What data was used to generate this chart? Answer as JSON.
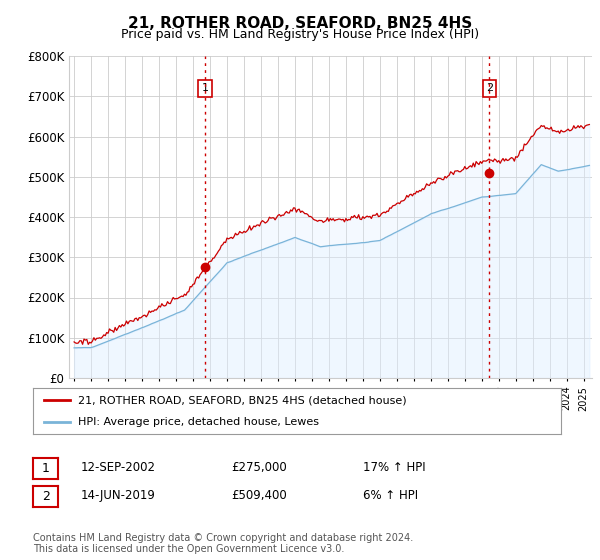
{
  "title": "21, ROTHER ROAD, SEAFORD, BN25 4HS",
  "subtitle": "Price paid vs. HM Land Registry's House Price Index (HPI)",
  "title_fontsize": 11,
  "subtitle_fontsize": 9,
  "ylabel_ticks": [
    "£0",
    "£100K",
    "£200K",
    "£300K",
    "£400K",
    "£500K",
    "£600K",
    "£700K",
    "£800K"
  ],
  "ytick_values": [
    0,
    100000,
    200000,
    300000,
    400000,
    500000,
    600000,
    700000,
    800000
  ],
  "ylim": [
    0,
    800000
  ],
  "xlim_start": 1994.7,
  "xlim_end": 2025.5,
  "hpi_color": "#7ab4d8",
  "price_color": "#cc0000",
  "vline_color": "#cc0000",
  "bg_fill_color": "#ddeeff",
  "marker1_date": 2002.7,
  "marker1_price": 275000,
  "marker2_date": 2019.45,
  "marker2_price": 509400,
  "legend_label_red": "21, ROTHER ROAD, SEAFORD, BN25 4HS (detached house)",
  "legend_label_blue": "HPI: Average price, detached house, Lewes",
  "note1_label": "1",
  "note1_date": "12-SEP-2002",
  "note1_price": "£275,000",
  "note1_hpi": "17% ↑ HPI",
  "note2_label": "2",
  "note2_date": "14-JUN-2019",
  "note2_price": "£509,400",
  "note2_hpi": "6% ↑ HPI",
  "footer": "Contains HM Land Registry data © Crown copyright and database right 2024.\nThis data is licensed under the Open Government Licence v3.0.",
  "background_color": "#ffffff",
  "grid_color": "#cccccc"
}
